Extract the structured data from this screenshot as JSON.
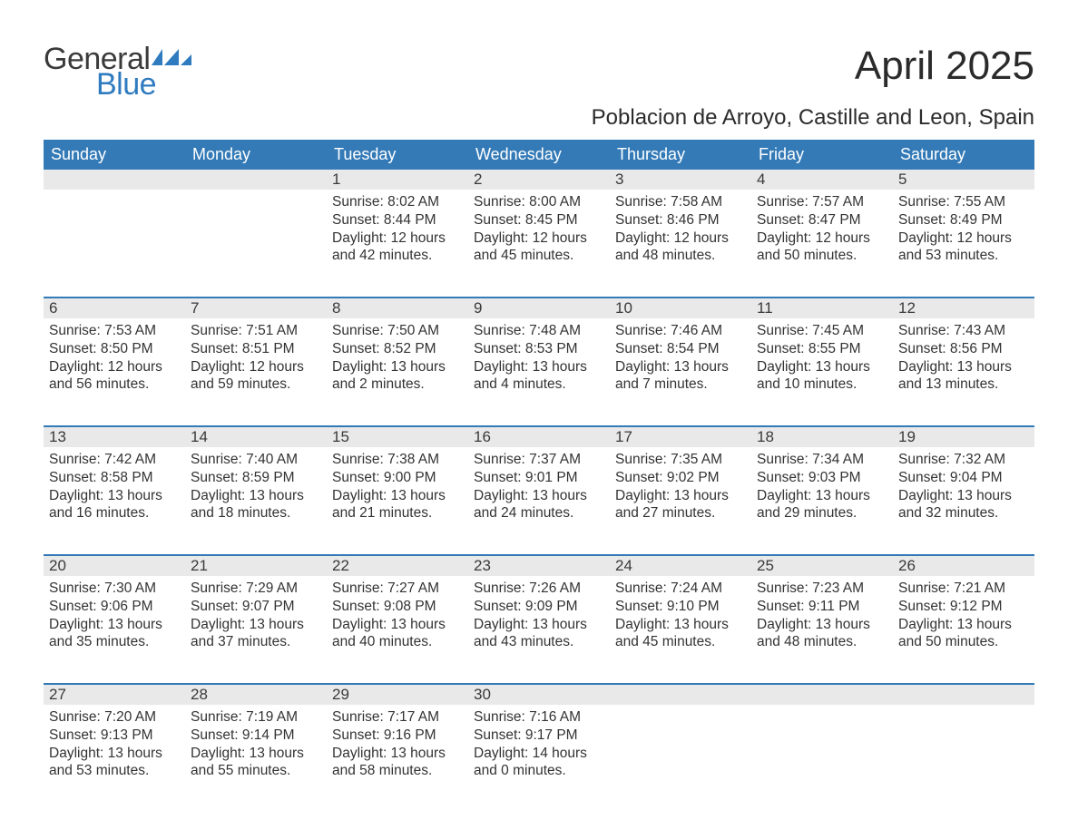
{
  "logo": {
    "general": "General",
    "blue": "Blue",
    "flag_color": "#2f7bbf"
  },
  "title": "April 2025",
  "subtitle": "Poblacion de Arroyo, Castille and Leon, Spain",
  "colors": {
    "header_bg": "#337ab7",
    "header_text": "#ffffff",
    "daynum_band": "#e9e9e9",
    "text": "#333333",
    "rule": "#337ab7",
    "logo_dark": "#3a3a3a",
    "logo_blue": "#2f7bbf"
  },
  "weekdays": [
    "Sunday",
    "Monday",
    "Tuesday",
    "Wednesday",
    "Thursday",
    "Friday",
    "Saturday"
  ],
  "weeks": [
    [
      {
        "blank": true
      },
      {
        "blank": true
      },
      {
        "day": "1",
        "sunrise": "Sunrise: 8:02 AM",
        "sunset": "Sunset: 8:44 PM",
        "dl1": "Daylight: 12 hours",
        "dl2": "and 42 minutes."
      },
      {
        "day": "2",
        "sunrise": "Sunrise: 8:00 AM",
        "sunset": "Sunset: 8:45 PM",
        "dl1": "Daylight: 12 hours",
        "dl2": "and 45 minutes."
      },
      {
        "day": "3",
        "sunrise": "Sunrise: 7:58 AM",
        "sunset": "Sunset: 8:46 PM",
        "dl1": "Daylight: 12 hours",
        "dl2": "and 48 minutes."
      },
      {
        "day": "4",
        "sunrise": "Sunrise: 7:57 AM",
        "sunset": "Sunset: 8:47 PM",
        "dl1": "Daylight: 12 hours",
        "dl2": "and 50 minutes."
      },
      {
        "day": "5",
        "sunrise": "Sunrise: 7:55 AM",
        "sunset": "Sunset: 8:49 PM",
        "dl1": "Daylight: 12 hours",
        "dl2": "and 53 minutes."
      }
    ],
    [
      {
        "day": "6",
        "sunrise": "Sunrise: 7:53 AM",
        "sunset": "Sunset: 8:50 PM",
        "dl1": "Daylight: 12 hours",
        "dl2": "and 56 minutes."
      },
      {
        "day": "7",
        "sunrise": "Sunrise: 7:51 AM",
        "sunset": "Sunset: 8:51 PM",
        "dl1": "Daylight: 12 hours",
        "dl2": "and 59 minutes."
      },
      {
        "day": "8",
        "sunrise": "Sunrise: 7:50 AM",
        "sunset": "Sunset: 8:52 PM",
        "dl1": "Daylight: 13 hours",
        "dl2": "and 2 minutes."
      },
      {
        "day": "9",
        "sunrise": "Sunrise: 7:48 AM",
        "sunset": "Sunset: 8:53 PM",
        "dl1": "Daylight: 13 hours",
        "dl2": "and 4 minutes."
      },
      {
        "day": "10",
        "sunrise": "Sunrise: 7:46 AM",
        "sunset": "Sunset: 8:54 PM",
        "dl1": "Daylight: 13 hours",
        "dl2": "and 7 minutes."
      },
      {
        "day": "11",
        "sunrise": "Sunrise: 7:45 AM",
        "sunset": "Sunset: 8:55 PM",
        "dl1": "Daylight: 13 hours",
        "dl2": "and 10 minutes."
      },
      {
        "day": "12",
        "sunrise": "Sunrise: 7:43 AM",
        "sunset": "Sunset: 8:56 PM",
        "dl1": "Daylight: 13 hours",
        "dl2": "and 13 minutes."
      }
    ],
    [
      {
        "day": "13",
        "sunrise": "Sunrise: 7:42 AM",
        "sunset": "Sunset: 8:58 PM",
        "dl1": "Daylight: 13 hours",
        "dl2": "and 16 minutes."
      },
      {
        "day": "14",
        "sunrise": "Sunrise: 7:40 AM",
        "sunset": "Sunset: 8:59 PM",
        "dl1": "Daylight: 13 hours",
        "dl2": "and 18 minutes."
      },
      {
        "day": "15",
        "sunrise": "Sunrise: 7:38 AM",
        "sunset": "Sunset: 9:00 PM",
        "dl1": "Daylight: 13 hours",
        "dl2": "and 21 minutes."
      },
      {
        "day": "16",
        "sunrise": "Sunrise: 7:37 AM",
        "sunset": "Sunset: 9:01 PM",
        "dl1": "Daylight: 13 hours",
        "dl2": "and 24 minutes."
      },
      {
        "day": "17",
        "sunrise": "Sunrise: 7:35 AM",
        "sunset": "Sunset: 9:02 PM",
        "dl1": "Daylight: 13 hours",
        "dl2": "and 27 minutes."
      },
      {
        "day": "18",
        "sunrise": "Sunrise: 7:34 AM",
        "sunset": "Sunset: 9:03 PM",
        "dl1": "Daylight: 13 hours",
        "dl2": "and 29 minutes."
      },
      {
        "day": "19",
        "sunrise": "Sunrise: 7:32 AM",
        "sunset": "Sunset: 9:04 PM",
        "dl1": "Daylight: 13 hours",
        "dl2": "and 32 minutes."
      }
    ],
    [
      {
        "day": "20",
        "sunrise": "Sunrise: 7:30 AM",
        "sunset": "Sunset: 9:06 PM",
        "dl1": "Daylight: 13 hours",
        "dl2": "and 35 minutes."
      },
      {
        "day": "21",
        "sunrise": "Sunrise: 7:29 AM",
        "sunset": "Sunset: 9:07 PM",
        "dl1": "Daylight: 13 hours",
        "dl2": "and 37 minutes."
      },
      {
        "day": "22",
        "sunrise": "Sunrise: 7:27 AM",
        "sunset": "Sunset: 9:08 PM",
        "dl1": "Daylight: 13 hours",
        "dl2": "and 40 minutes."
      },
      {
        "day": "23",
        "sunrise": "Sunrise: 7:26 AM",
        "sunset": "Sunset: 9:09 PM",
        "dl1": "Daylight: 13 hours",
        "dl2": "and 43 minutes."
      },
      {
        "day": "24",
        "sunrise": "Sunrise: 7:24 AM",
        "sunset": "Sunset: 9:10 PM",
        "dl1": "Daylight: 13 hours",
        "dl2": "and 45 minutes."
      },
      {
        "day": "25",
        "sunrise": "Sunrise: 7:23 AM",
        "sunset": "Sunset: 9:11 PM",
        "dl1": "Daylight: 13 hours",
        "dl2": "and 48 minutes."
      },
      {
        "day": "26",
        "sunrise": "Sunrise: 7:21 AM",
        "sunset": "Sunset: 9:12 PM",
        "dl1": "Daylight: 13 hours",
        "dl2": "and 50 minutes."
      }
    ],
    [
      {
        "day": "27",
        "sunrise": "Sunrise: 7:20 AM",
        "sunset": "Sunset: 9:13 PM",
        "dl1": "Daylight: 13 hours",
        "dl2": "and 53 minutes."
      },
      {
        "day": "28",
        "sunrise": "Sunrise: 7:19 AM",
        "sunset": "Sunset: 9:14 PM",
        "dl1": "Daylight: 13 hours",
        "dl2": "and 55 minutes."
      },
      {
        "day": "29",
        "sunrise": "Sunrise: 7:17 AM",
        "sunset": "Sunset: 9:16 PM",
        "dl1": "Daylight: 13 hours",
        "dl2": "and 58 minutes."
      },
      {
        "day": "30",
        "sunrise": "Sunrise: 7:16 AM",
        "sunset": "Sunset: 9:17 PM",
        "dl1": "Daylight: 14 hours",
        "dl2": "and 0 minutes."
      },
      {
        "blank": true
      },
      {
        "blank": true
      },
      {
        "blank": true
      }
    ]
  ]
}
